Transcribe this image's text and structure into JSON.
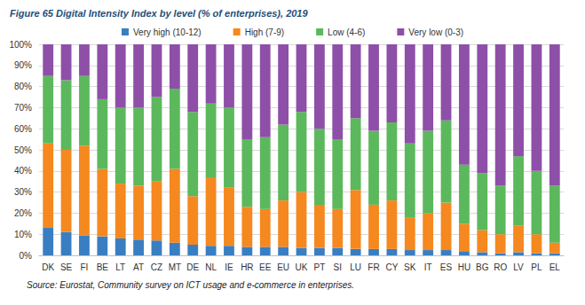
{
  "chart_data": {
    "type": "bar",
    "title": "Figure 65 Digital Intensity Index by level (% of enterprises), 2019",
    "annotations": [
      "Source: Eurostat, Community survey on ICT usage and e-commerce in enterprises."
    ],
    "categories": [
      "DK",
      "SE",
      "FI",
      "BE",
      "LT",
      "AT",
      "CZ",
      "MT",
      "DE",
      "NL",
      "IE",
      "HR",
      "EE",
      "EU",
      "UK",
      "PT",
      "SI",
      "LU",
      "FR",
      "CY",
      "SK",
      "IT",
      "ES",
      "HU",
      "BG",
      "RO",
      "LV",
      "PL",
      "EL"
    ],
    "series": [
      {
        "name": "Very high (10-12)",
        "color": "#3a7ec2",
        "values": [
          13,
          11,
          9.5,
          9,
          8,
          7.5,
          7,
          6,
          5,
          4.5,
          4.5,
          4,
          4,
          4,
          3.5,
          3.5,
          3.5,
          3,
          3,
          3,
          2.5,
          2.5,
          2.5,
          2,
          1.5,
          1,
          1.5,
          1,
          1
        ]
      },
      {
        "name": "High (7-9)",
        "color": "#f5881f",
        "values": [
          40,
          39,
          42.5,
          32,
          26,
          25.5,
          28,
          35,
          23,
          32.5,
          27.5,
          19,
          18,
          22,
          26.5,
          20.5,
          18.5,
          28,
          21,
          23,
          15.5,
          17.5,
          22.5,
          13,
          10.5,
          9,
          12.5,
          9,
          5
        ]
      },
      {
        "name": "Low (4-6)",
        "color": "#5cb85c",
        "values": [
          32,
          33,
          33,
          33,
          36,
          37,
          40,
          38,
          40,
          35,
          38,
          32,
          34,
          36,
          38,
          36,
          33,
          34,
          35,
          37,
          35,
          39,
          39,
          28,
          27,
          23,
          33,
          30,
          27
        ]
      },
      {
        "name": "Very low (0-3)",
        "color": "#8e4fa8",
        "values": [
          15,
          17,
          15,
          26,
          30,
          30,
          25,
          21,
          32,
          28,
          30,
          45,
          44,
          38,
          32,
          40,
          45,
          35,
          41,
          37,
          47,
          41,
          36,
          57,
          61,
          67,
          53,
          60,
          67
        ]
      }
    ],
    "stacked": true,
    "legend": "top",
    "grid": true,
    "ylim": [
      0,
      100
    ],
    "yticks": [
      {
        "value": 0,
        "label": "0%"
      },
      {
        "value": 10,
        "label": "10%"
      },
      {
        "value": 20,
        "label": "20%"
      },
      {
        "value": 30,
        "label": "30%"
      },
      {
        "value": 40,
        "label": "40%"
      },
      {
        "value": 50,
        "label": "50%"
      },
      {
        "value": 60,
        "label": "60%"
      },
      {
        "value": 70,
        "label": "70%"
      },
      {
        "value": 80,
        "label": "80%"
      },
      {
        "value": 90,
        "label": "90%"
      },
      {
        "value": 100,
        "label": "100%"
      }
    ]
  }
}
